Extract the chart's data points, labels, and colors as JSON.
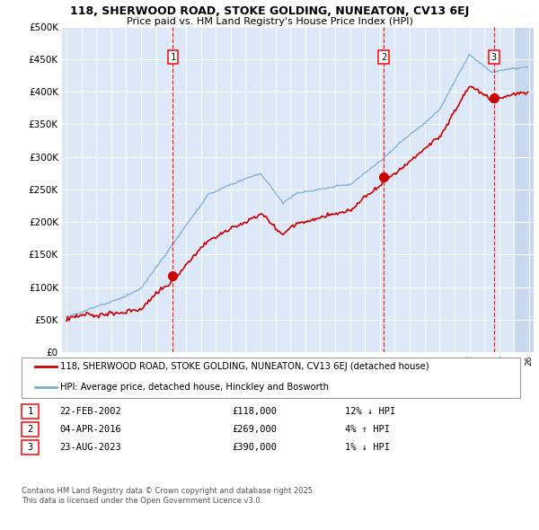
{
  "title1": "118, SHERWOOD ROAD, STOKE GOLDING, NUNEATON, CV13 6EJ",
  "title2": "Price paid vs. HM Land Registry's House Price Index (HPI)",
  "ylabel_ticks": [
    "£0",
    "£50K",
    "£100K",
    "£150K",
    "£200K",
    "£250K",
    "£300K",
    "£350K",
    "£400K",
    "£450K",
    "£500K"
  ],
  "ytick_values": [
    0,
    50000,
    100000,
    150000,
    200000,
    250000,
    300000,
    350000,
    400000,
    450000,
    500000
  ],
  "xlim": [
    1994.7,
    2026.3
  ],
  "ylim": [
    0,
    500000
  ],
  "background_color": "#dce8f8",
  "grid_color": "#ffffff",
  "hpi_color": "#7aadd4",
  "price_color": "#cc0000",
  "sale1_date": 2002.13,
  "sale1_price": 118000,
  "sale2_date": 2016.25,
  "sale2_price": 269000,
  "sale3_date": 2023.64,
  "sale3_price": 390000,
  "legend_label1": "118, SHERWOOD ROAD, STOKE GOLDING, NUNEATON, CV13 6EJ (detached house)",
  "legend_label2": "HPI: Average price, detached house, Hinckley and Bosworth",
  "table_rows": [
    {
      "num": "1",
      "date": "22-FEB-2002",
      "price": "£118,000",
      "hpi": "12% ↓ HPI"
    },
    {
      "num": "2",
      "date": "04-APR-2016",
      "price": "£269,000",
      "hpi": "4% ↑ HPI"
    },
    {
      "num": "3",
      "date": "23-AUG-2023",
      "price": "£390,000",
      "hpi": "1% ↓ HPI"
    }
  ],
  "footer": "Contains HM Land Registry data © Crown copyright and database right 2025.\nThis data is licensed under the Open Government Licence v3.0."
}
